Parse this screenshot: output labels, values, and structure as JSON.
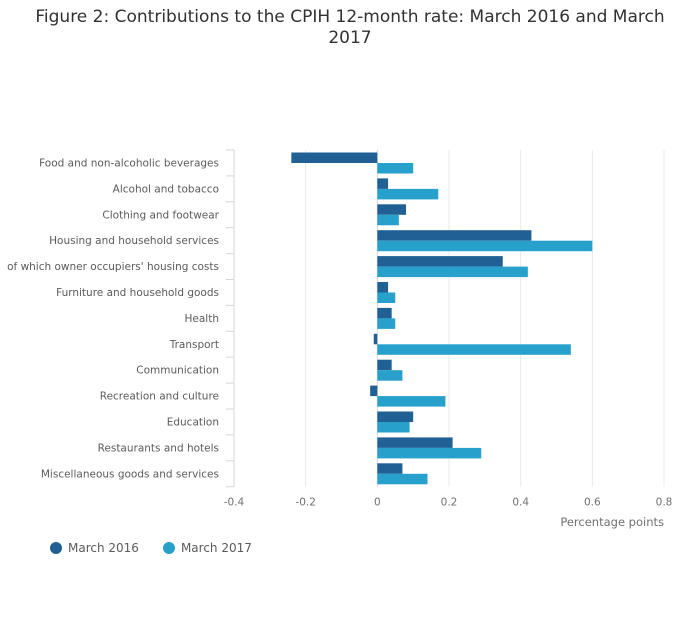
{
  "title": "Figure 2: Contributions to the CPIH 12-month rate: March 2016 and March 2017",
  "chart_data": {
    "type": "bar",
    "orientation": "horizontal",
    "title": "Figure 2: Contributions to the CPIH 12-month rate: March 2016 and March 2017",
    "xlabel": "Percentage points",
    "ylabel": "",
    "xlim": [
      -0.4,
      0.8
    ],
    "xticks": [
      "-0.4",
      "-0.2",
      "0",
      "0.2",
      "0.4",
      "0.6",
      "0.8"
    ],
    "grid": true,
    "legend_position": "bottom-left",
    "categories": [
      "Food and non-alcoholic beverages",
      "Alcohol and tobacco",
      "Clothing and footwear",
      "Housing and household services",
      "of which owner occupiers' housing costs",
      "Furniture and household goods",
      "Health",
      "Transport",
      "Communication",
      "Recreation and culture",
      "Education",
      "Restaurants and hotels",
      "Miscellaneous goods and services"
    ],
    "series": [
      {
        "name": "March 2016",
        "color": "#206095",
        "values": [
          -0.24,
          0.03,
          0.08,
          0.43,
          0.35,
          0.03,
          0.04,
          -0.01,
          0.04,
          -0.02,
          0.1,
          0.21,
          0.07
        ]
      },
      {
        "name": "March 2017",
        "color": "#27A0CC",
        "values": [
          0.1,
          0.17,
          0.06,
          0.6,
          0.42,
          0.05,
          0.05,
          0.54,
          0.07,
          0.19,
          0.09,
          0.29,
          0.14
        ]
      }
    ]
  }
}
